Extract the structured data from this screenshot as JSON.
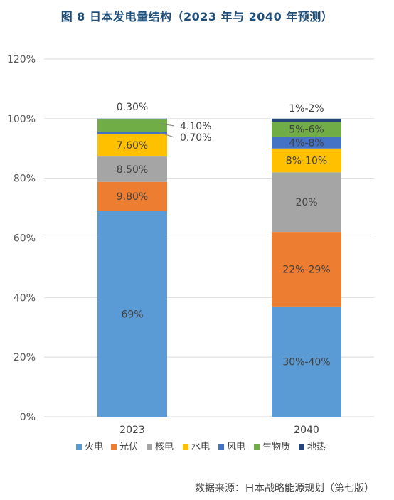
{
  "title": "图 8  日本发电量结构（2023 年与 2040 年预测）",
  "source": "数据来源：日本战略能源规划（第七版）",
  "chart_data": {
    "type": "bar",
    "stacked": true,
    "categories": [
      "2023",
      "2040"
    ],
    "ylim": [
      0,
      120
    ],
    "yticks": [
      "0%",
      "20%",
      "40%",
      "60%",
      "80%",
      "100%",
      "120%"
    ],
    "grid": true,
    "legend_position": "bottom",
    "series": [
      {
        "name": "火电",
        "color": "#5b9bd5",
        "values": [
          69,
          37
        ],
        "labels": [
          "69%",
          "30%-40%"
        ],
        "label_color": "#404040"
      },
      {
        "name": "光伏",
        "color": "#ed7d31",
        "values": [
          9.8,
          25
        ],
        "labels": [
          "9.80%",
          "22%-29%"
        ],
        "label_color": "#404040"
      },
      {
        "name": "核电",
        "color": "#a5a5a5",
        "values": [
          8.5,
          20
        ],
        "labels": [
          "8.50%",
          "20%"
        ],
        "label_color": "#404040"
      },
      {
        "name": "水电",
        "color": "#ffc000",
        "values": [
          7.6,
          8
        ],
        "labels": [
          "7.60%",
          "8%-10%"
        ],
        "label_color": "#404040"
      },
      {
        "name": "风电",
        "color": "#4472c4",
        "values": [
          0.7,
          4
        ],
        "labels": [
          "0.70%",
          "4%-8%"
        ],
        "label_color": "#404040"
      },
      {
        "name": "生物质",
        "color": "#70ad47",
        "values": [
          4.1,
          5
        ],
        "labels": [
          "4.10%",
          "5%-6%"
        ],
        "label_color": "#404040"
      },
      {
        "name": "地热",
        "color": "#264478",
        "values": [
          0.3,
          1
        ],
        "labels": [
          "0.30%",
          "1%-2%"
        ],
        "label_color": "#404040"
      }
    ]
  }
}
